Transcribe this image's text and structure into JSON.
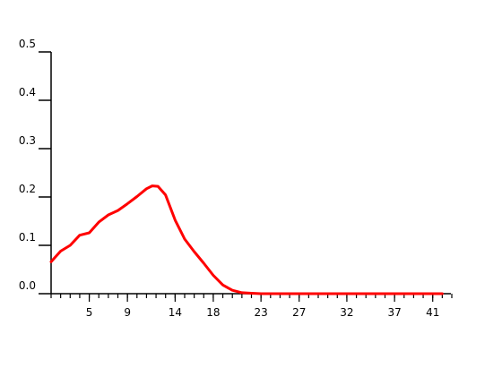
{
  "chart_data": {
    "type": "line",
    "title": "",
    "xlabel": "",
    "ylabel": "",
    "xlim": [
      1,
      43
    ],
    "ylim": [
      0,
      0.5
    ],
    "grid": false,
    "legend": "none",
    "x_tick_labels": [
      "5",
      "9",
      "14",
      "18",
      "23",
      "27",
      "32",
      "37",
      "41"
    ],
    "x_tick_values": [
      5,
      9,
      14,
      18,
      23,
      27,
      32,
      37,
      41
    ],
    "y_tick_labels": [
      "0.0",
      "0.1",
      "0.2",
      "0.3",
      "0.4",
      "0.5"
    ],
    "y_tick_values": [
      0,
      0.1,
      0.2,
      0.3,
      0.4,
      0.5
    ],
    "series": [
      {
        "color": "#ff0000",
        "x": [
          1,
          2,
          3,
          4,
          5,
          6,
          7,
          8,
          9,
          10,
          11,
          11.6,
          12.2,
          13,
          14,
          15,
          16,
          17,
          18,
          19,
          20,
          21,
          22,
          23,
          25,
          30,
          35,
          40,
          42
        ],
        "y": [
          0.066,
          0.088,
          0.1,
          0.121,
          0.126,
          0.148,
          0.163,
          0.172,
          0.186,
          0.201,
          0.217,
          0.223,
          0.222,
          0.204,
          0.152,
          0.113,
          0.087,
          0.063,
          0.038,
          0.018,
          0.007,
          0.002,
          0.001,
          0.0,
          0.0,
          0.0,
          0.0,
          0.0,
          0.0
        ]
      }
    ]
  }
}
